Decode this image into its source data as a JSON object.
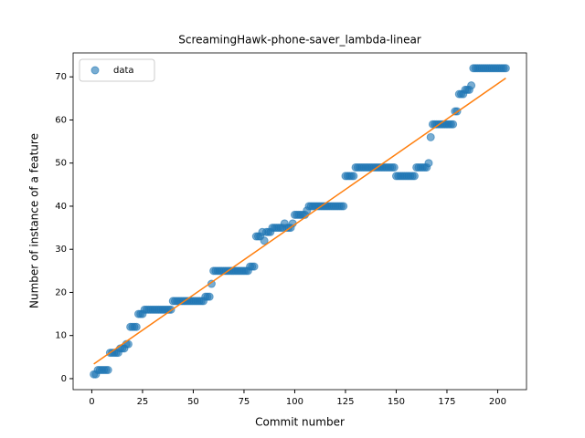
{
  "chart_data": {
    "type": "scatter",
    "title": "ScreamingHawk-phone-saver_lambda-linear",
    "x_label": "Commit number",
    "y_label": "Number of instance of a feature",
    "legend": "upper left",
    "series": [
      {
        "name": "data",
        "color": "#1f77b4",
        "x": [
          1,
          2,
          3,
          4,
          5,
          6,
          7,
          8,
          9,
          10,
          11,
          12,
          13,
          14,
          15,
          16,
          17,
          18,
          19,
          20,
          21,
          22,
          23,
          24,
          25,
          26,
          27,
          28,
          29,
          30,
          31,
          32,
          33,
          34,
          35,
          36,
          37,
          38,
          39,
          40,
          41,
          42,
          43,
          44,
          45,
          46,
          47,
          48,
          49,
          50,
          51,
          52,
          53,
          54,
          55,
          56,
          57,
          58,
          59,
          60,
          61,
          62,
          63,
          64,
          65,
          66,
          67,
          68,
          69,
          70,
          71,
          72,
          73,
          74,
          75,
          76,
          77,
          78,
          79,
          80,
          81,
          82,
          83,
          84,
          85,
          86,
          87,
          88,
          89,
          90,
          91,
          92,
          93,
          94,
          95,
          96,
          97,
          98,
          99,
          100,
          101,
          102,
          103,
          104,
          105,
          106,
          107,
          108,
          109,
          110,
          111,
          112,
          113,
          114,
          115,
          116,
          117,
          118,
          119,
          120,
          121,
          122,
          123,
          124,
          125,
          126,
          127,
          128,
          129,
          130,
          131,
          132,
          133,
          134,
          135,
          136,
          137,
          138,
          139,
          140,
          141,
          142,
          143,
          144,
          145,
          146,
          147,
          148,
          149,
          150,
          151,
          152,
          153,
          154,
          155,
          156,
          157,
          158,
          159,
          160,
          161,
          162,
          163,
          164,
          165,
          166,
          167,
          168,
          169,
          170,
          171,
          172,
          173,
          174,
          175,
          176,
          177,
          178,
          179,
          180,
          181,
          182,
          183,
          184,
          185,
          186,
          187,
          188,
          189,
          190,
          191,
          192,
          193,
          194,
          195,
          196,
          197,
          198,
          199,
          200,
          201,
          202,
          203,
          204
        ],
        "values": [
          1,
          1,
          2,
          2,
          2,
          2,
          2,
          2,
          6,
          6,
          6,
          6,
          6,
          7,
          7,
          7,
          8,
          8,
          12,
          12,
          12,
          12,
          15,
          15,
          15,
          16,
          16,
          16,
          16,
          16,
          16,
          16,
          16,
          16,
          16,
          16,
          16,
          16,
          16,
          18,
          18,
          18,
          18,
          18,
          18,
          18,
          18,
          18,
          18,
          18,
          18,
          18,
          18,
          18,
          18,
          19,
          19,
          19,
          22,
          25,
          25,
          25,
          25,
          25,
          25,
          25,
          25,
          25,
          25,
          25,
          25,
          25,
          25,
          25,
          25,
          25,
          25,
          26,
          26,
          26,
          33,
          33,
          33,
          34,
          32,
          34,
          34,
          34,
          35,
          35,
          35,
          35,
          35,
          35,
          36,
          35,
          35,
          35,
          36,
          38,
          38,
          38,
          38,
          38,
          38,
          39,
          40,
          40,
          40,
          40,
          40,
          40,
          40,
          40,
          40,
          40,
          40,
          40,
          40,
          40,
          40,
          40,
          40,
          40,
          47,
          47,
          47,
          47,
          47,
          49,
          49,
          49,
          49,
          49,
          49,
          49,
          49,
          49,
          49,
          49,
          49,
          49,
          49,
          49,
          49,
          49,
          49,
          49,
          49,
          47,
          47,
          47,
          47,
          47,
          47,
          47,
          47,
          47,
          47,
          49,
          49,
          49,
          49,
          49,
          49,
          50,
          56,
          59,
          59,
          59,
          59,
          59,
          59,
          59,
          59,
          59,
          59,
          59,
          62,
          62,
          66,
          66,
          66,
          67,
          67,
          67,
          68,
          72,
          72,
          72,
          72,
          72,
          72,
          72,
          72,
          72,
          72,
          72,
          72,
          72,
          72,
          72,
          72,
          72
        ]
      }
    ],
    "fit": {
      "color": "#ff7f0e",
      "x": [
        1,
        204
      ],
      "values": [
        3.4,
        69.7
      ]
    },
    "xlim": [
      -9.2,
      214.2
    ],
    "ylim": [
      -2.55,
      75.55
    ],
    "xticks": [
      0,
      25,
      50,
      75,
      100,
      125,
      150,
      175,
      200
    ],
    "yticks": [
      0,
      10,
      20,
      30,
      40,
      50,
      60,
      70
    ]
  }
}
